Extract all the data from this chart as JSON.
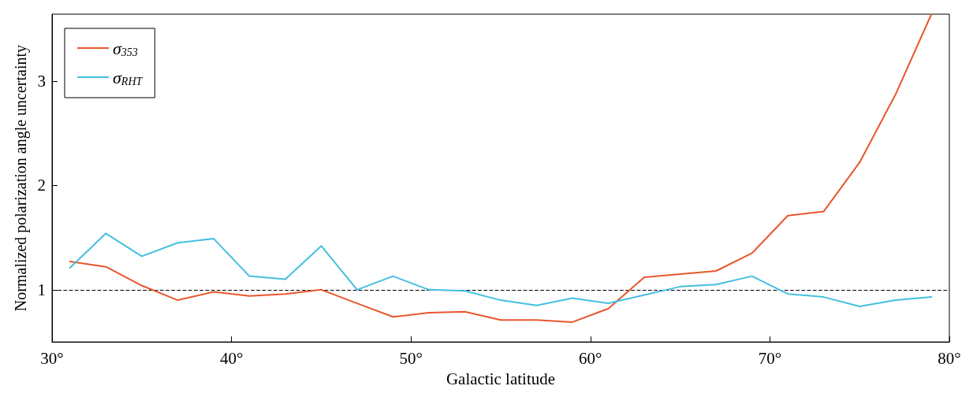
{
  "chart_data": {
    "type": "line",
    "xlabel": "Galactic latitude",
    "ylabel": "Normalized polarization angle uncertainty",
    "x": [
      31,
      33,
      35,
      37,
      39,
      41,
      43,
      45,
      47,
      49,
      51,
      53,
      55,
      57,
      59,
      61,
      63,
      65,
      67,
      69,
      71,
      73,
      75,
      77,
      79
    ],
    "series": [
      {
        "name": "σ$_{353}$",
        "color": "#e8562e",
        "values": [
          1.27,
          1.22,
          1.04,
          0.9,
          0.98,
          0.94,
          0.96,
          1.0,
          0.87,
          0.74,
          0.78,
          0.79,
          0.71,
          0.71,
          0.69,
          0.82,
          1.12,
          1.15,
          1.18,
          1.35,
          1.71,
          1.75,
          2.22,
          2.87,
          3.64
        ]
      },
      {
        "name": "σ$_{RHT}$",
        "color": "#45bfdf",
        "values": [
          1.21,
          1.54,
          1.32,
          1.45,
          1.49,
          1.13,
          1.1,
          1.42,
          1.0,
          1.13,
          1.0,
          0.99,
          0.9,
          0.85,
          0.92,
          0.87,
          0.95,
          1.03,
          1.05,
          1.13,
          0.96,
          0.93,
          0.84,
          0.9,
          0.93
        ]
      }
    ],
    "xlim": [
      30,
      80
    ],
    "xticks": [
      {
        "value": 30,
        "label": "30°"
      },
      {
        "value": 40,
        "label": "40°"
      },
      {
        "value": 50,
        "label": "50°"
      },
      {
        "value": 60,
        "label": "60°"
      },
      {
        "value": 70,
        "label": "70°"
      },
      {
        "value": 80,
        "label": "80°"
      }
    ],
    "ylim": [
      0.5,
      3.64
    ],
    "yticks": [
      1,
      2,
      3
    ],
    "ref_lines": [
      {
        "axis": "y",
        "value": 1,
        "color": "#000000",
        "line_style": "dashed"
      }
    ],
    "legend": "top left",
    "grid": false,
    "marker": "none",
    "line_style": "solid"
  }
}
